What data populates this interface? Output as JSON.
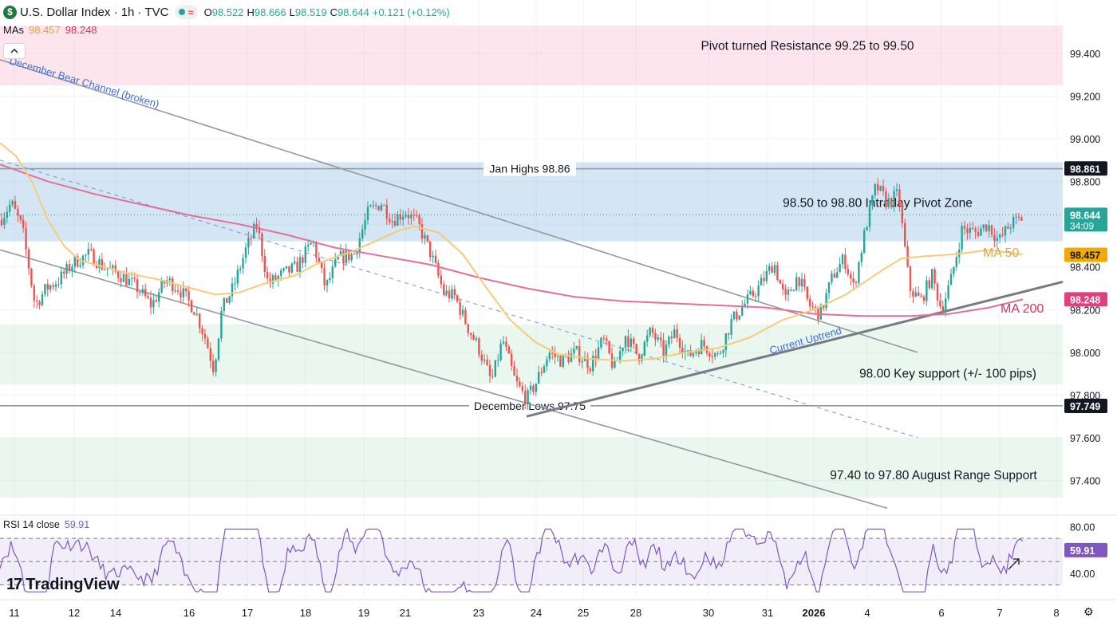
{
  "header": {
    "symbol_icon": "$",
    "title": "U.S. Dollar Index · 1h · TVC",
    "status_tilde": "≈",
    "ohlc": [
      {
        "k": "O",
        "v": "98.522"
      },
      {
        "k": "H",
        "v": "98.666"
      },
      {
        "k": "L",
        "v": "98.519"
      },
      {
        "k": "C",
        "v": "98.644"
      },
      {
        "k": "",
        "v": "+0.121 (+0.12%)"
      }
    ]
  },
  "mas": {
    "label": "MAs",
    "ma50": "98.457",
    "ma200": "98.248"
  },
  "collapse_icon": "chevron-up-icon",
  "rsi": {
    "label": "RSI 14 close",
    "value": "59.91"
  },
  "logo": {
    "mark": "17",
    "text": "TradingView"
  },
  "colors": {
    "up": "#26a69a",
    "down": "#ef5350",
    "ma50": "#f5cb7a",
    "ma200": "#e2709a",
    "rsi": "#7e57c2",
    "channel": "#9598a1",
    "uptrend": "#787b86"
  },
  "chart_data": {
    "type": "candlestick",
    "price_axis": {
      "ticks": [
        97.4,
        97.6,
        97.8,
        98.0,
        98.2,
        98.4,
        98.6,
        98.8,
        99.0,
        99.2,
        99.4
      ],
      "tick_labels": [
        "97.400",
        "97.600",
        "97.800",
        "98.000",
        "98.200",
        "98.400",
        "98.600",
        "98.800",
        "99.000",
        "99.200",
        "99.400"
      ],
      "range": [
        97.26,
        99.62
      ]
    },
    "time_axis": {
      "labels": [
        "11",
        "12",
        "14",
        "16",
        "17",
        "18",
        "19",
        "21",
        "23",
        "24",
        "25",
        "28",
        "30",
        "31",
        "2026",
        "4",
        "6",
        "7",
        "8"
      ]
    },
    "price_tags": [
      {
        "value": 98.861,
        "label": "98.861",
        "style": "dark"
      },
      {
        "value": 98.644,
        "label": "98.644",
        "sub": "34:09",
        "style": "last"
      },
      {
        "value": 98.457,
        "label": "98.457",
        "style": "ma50"
      },
      {
        "value": 98.248,
        "label": "98.248",
        "style": "ma200"
      },
      {
        "value": 97.749,
        "label": "97.749",
        "style": "dark"
      }
    ],
    "zones": [
      {
        "from": 99.25,
        "to": 99.53,
        "label": "Pivot turned Resistance 99.25 to 99.50",
        "color": "pink"
      },
      {
        "from": 98.52,
        "to": 98.89,
        "label": "98.50 to 98.80 Intraday Pivot Zone",
        "color": "blue"
      },
      {
        "from": 97.85,
        "to": 98.13,
        "label": "98.00 Key support (+/- 100 pips)",
        "color": "green"
      },
      {
        "from": 97.32,
        "to": 97.6,
        "label": "97.40 to 97.80 August Range Support",
        "color": "green"
      }
    ],
    "levels": [
      {
        "value": 98.86,
        "label": "Jan Highs 98.86"
      },
      {
        "value": 97.75,
        "label": "December Lows 97.75"
      }
    ],
    "annotations": [
      {
        "text": "December Bear Channel (broken)"
      },
      {
        "text": "Current Uptrend"
      },
      {
        "text": "MA 50"
      },
      {
        "text": "MA 200"
      }
    ],
    "series": [
      {
        "name": "MA 50",
        "last": 98.457
      },
      {
        "name": "MA 200",
        "last": 98.248
      }
    ],
    "path_points": [
      [
        0,
        98.62
      ],
      [
        14,
        98.7
      ],
      [
        28,
        98.58
      ],
      [
        44,
        98.22
      ],
      [
        58,
        98.3
      ],
      [
        74,
        98.34
      ],
      [
        92,
        98.42
      ],
      [
        112,
        98.46
      ],
      [
        130,
        98.4
      ],
      [
        152,
        98.36
      ],
      [
        172,
        98.3
      ],
      [
        190,
        98.22
      ],
      [
        208,
        98.34
      ],
      [
        224,
        98.3
      ],
      [
        244,
        98.2
      ],
      [
        258,
        98.06
      ],
      [
        268,
        97.92
      ],
      [
        278,
        98.2
      ],
      [
        292,
        98.3
      ],
      [
        308,
        98.48
      ],
      [
        322,
        98.6
      ],
      [
        336,
        98.32
      ],
      [
        352,
        98.36
      ],
      [
        372,
        98.4
      ],
      [
        392,
        98.52
      ],
      [
        408,
        98.3
      ],
      [
        424,
        98.44
      ],
      [
        444,
        98.46
      ],
      [
        462,
        98.66
      ],
      [
        478,
        98.7
      ],
      [
        492,
        98.62
      ],
      [
        508,
        98.66
      ],
      [
        524,
        98.6
      ],
      [
        540,
        98.46
      ],
      [
        556,
        98.28
      ],
      [
        570,
        98.26
      ],
      [
        586,
        98.12
      ],
      [
        600,
        98.02
      ],
      [
        616,
        97.86
      ],
      [
        630,
        98.06
      ],
      [
        646,
        97.86
      ],
      [
        660,
        97.78
      ],
      [
        672,
        97.86
      ],
      [
        688,
        98.0
      ],
      [
        704,
        97.96
      ],
      [
        722,
        98.0
      ],
      [
        740,
        97.94
      ],
      [
        756,
        98.06
      ],
      [
        770,
        97.92
      ],
      [
        784,
        98.08
      ],
      [
        800,
        97.98
      ],
      [
        816,
        98.1
      ],
      [
        832,
        98.0
      ],
      [
        846,
        98.1
      ],
      [
        862,
        97.98
      ],
      [
        880,
        98.04
      ],
      [
        900,
        97.98
      ],
      [
        916,
        98.14
      ],
      [
        932,
        98.22
      ],
      [
        950,
        98.3
      ],
      [
        970,
        98.42
      ],
      [
        984,
        98.24
      ],
      [
        1000,
        98.36
      ],
      [
        1014,
        98.22
      ],
      [
        1028,
        98.18
      ],
      [
        1044,
        98.36
      ],
      [
        1058,
        98.44
      ],
      [
        1070,
        98.3
      ],
      [
        1086,
        98.6
      ],
      [
        1098,
        98.78
      ],
      [
        1112,
        98.7
      ],
      [
        1126,
        98.74
      ],
      [
        1140,
        98.3
      ],
      [
        1154,
        98.24
      ],
      [
        1168,
        98.36
      ],
      [
        1180,
        98.2
      ],
      [
        1192,
        98.34
      ],
      [
        1206,
        98.58
      ],
      [
        1222,
        98.56
      ],
      [
        1238,
        98.6
      ],
      [
        1252,
        98.52
      ],
      [
        1266,
        98.6
      ],
      [
        1282,
        98.63
      ]
    ],
    "rsi_axis": {
      "ticks": [
        40,
        80
      ],
      "tick_labels": [
        "40.00",
        "80.00"
      ],
      "bands": [
        30,
        70
      ],
      "mid": 50
    }
  }
}
